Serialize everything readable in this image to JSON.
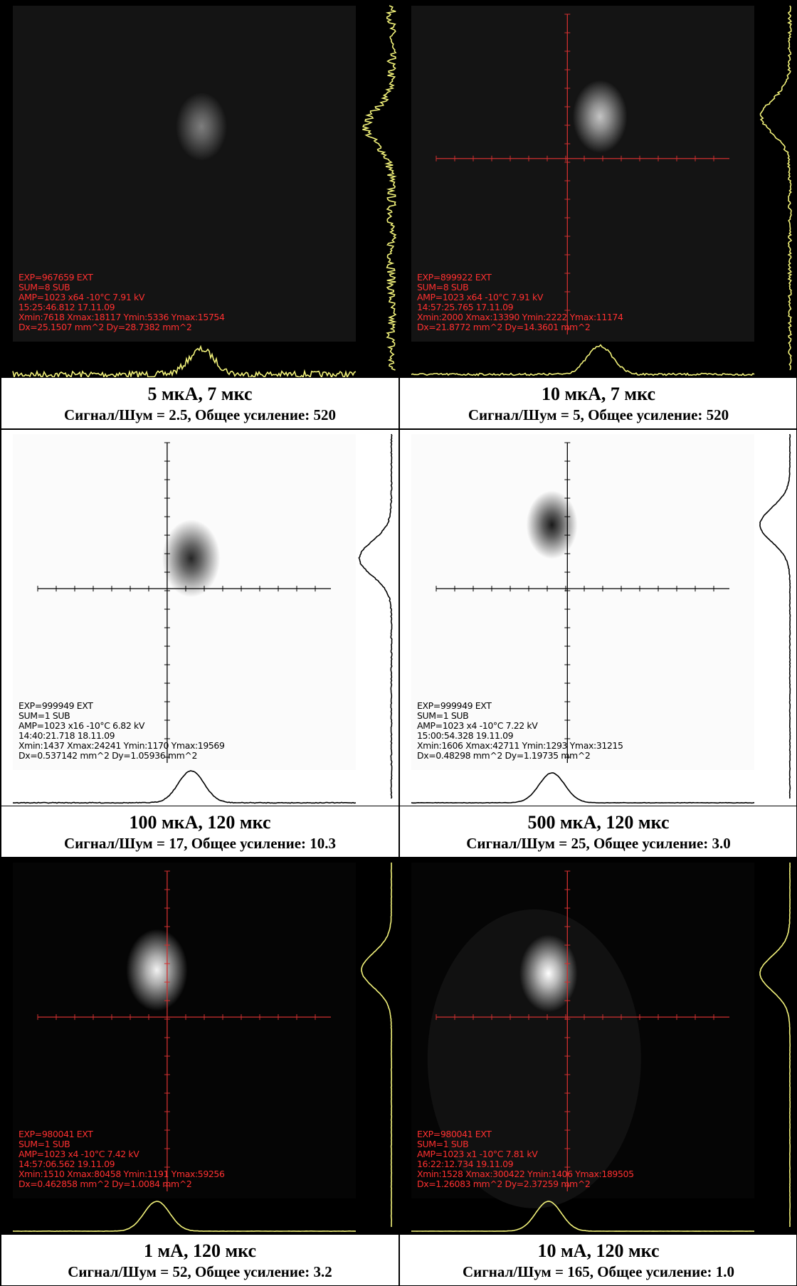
{
  "panels": [
    {
      "overlay": [
        "EXP=967659 EXT",
        "SUM=8 SUB",
        "AMP=1023 x64 -10°C 7.91 kV",
        "15:25:46.812 17.11.09",
        "Xmin:7618 Xmax:18117 Ymin:5336 Ymax:15754",
        "Dx=25.1507 mm^2 Dy=28.7382 mm^2"
      ],
      "title": "5 мкА, 7 мкс",
      "subtitle": "Сигнал/Шум = 2.5,  Общее усиление: 520"
    },
    {
      "overlay": [
        "EXP=899922 EXT",
        "SUM=8 SUB",
        "AMP=1023 x64 -10°C 7.91 kV",
        "14:57:25.765 17.11.09",
        "Xmin:2000 Xmax:13390 Ymin:2222 Ymax:11174",
        "Dx=21.8772 mm^2 Dy=14.3601 mm^2"
      ],
      "title": "10 мкА, 7 мкс",
      "subtitle": "Сигнал/Шум = 5,  Общее усиление: 520"
    },
    {
      "overlay": [
        "EXP=999949 EXT",
        "SUM=1 SUB",
        "AMP=1023 x16 -10°C 6.82 kV",
        "14:40:21.718 18.11.09",
        "Xmin:1437 Xmax:24241 Ymin:1170 Ymax:19569",
        "Dx=0.537142 mm^2 Dy=1.05936 mm^2"
      ],
      "title": "100 мкА, 120 мкс",
      "subtitle": "Сигнал/Шум = 17,  Общее усиление: 10.3"
    },
    {
      "overlay": [
        "EXP=999949 EXT",
        "SUM=1 SUB",
        "AMP=1023 x4 -10°C 7.22 kV",
        "15:00:54.328 19.11.09",
        "Xmin:1606 Xmax:42711 Ymin:1293 Ymax:31215",
        "Dx=0.48298 mm^2 Dy=1.19735 mm^2"
      ],
      "title": "500 мкА, 120 мкс",
      "subtitle": "Сигнал/Шум = 25,  Общее усиление: 3.0"
    },
    {
      "overlay": [
        "EXP=980041 EXT",
        "SUM=1 SUB",
        "AMP=1023 x4 -10°C 7.42 kV",
        "14:57:06.562 19.11.09",
        "Xmin:1510 Xmax:80458 Ymin:1191 Ymax:59256",
        "Dx=0.462858 mm^2 Dy=1.0084 mm^2"
      ],
      "title": "1 мА, 120 мкс",
      "subtitle": "Сигнал/Шум = 52,  Общее усиление: 3.2"
    },
    {
      "overlay": [
        "EXP=980041 EXT",
        "SUM=1 SUB",
        "AMP=1023 x1 -10°C 7.81 kV",
        "16:22:12.734 19.11.09",
        "Xmin:1528 Xmax:300422 Ymin:1406 Ymax:189505",
        "Dx=1.26083 mm^2 Dy=2.37259 mm^2"
      ],
      "title": "10 мА, 120 мкс",
      "subtitle": "Сигнал/Шум = 165,  Общее усиление: 1.0"
    }
  ]
}
